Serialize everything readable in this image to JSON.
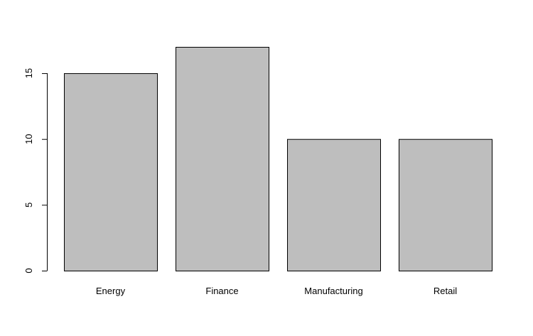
{
  "chart_data": {
    "type": "bar",
    "categories": [
      "Energy",
      "Finance",
      "Manufacturing",
      "Retail"
    ],
    "values": [
      15,
      17,
      10,
      10
    ],
    "title": "",
    "xlabel": "",
    "ylabel": "",
    "ylim": [
      0,
      17
    ],
    "yticks": [
      0,
      5,
      10,
      15
    ],
    "grid": false,
    "bar_color": "#bebebe",
    "bar_border_color": "#000000"
  }
}
